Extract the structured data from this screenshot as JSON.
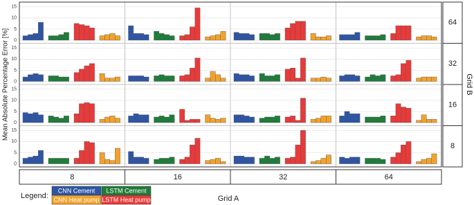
{
  "chart_data": {
    "type": "bar",
    "y_label": "Mean Absolute Percentage Error [%]",
    "x_facet_label": "Grid A",
    "y_facet_label": "Grid B",
    "legend_title": "Legend:",
    "x_facets": [
      "8",
      "16",
      "32",
      "64"
    ],
    "y_facets": [
      "64",
      "32",
      "16",
      "8"
    ],
    "ylim": [
      0,
      16.5
    ],
    "yticks": [
      0,
      5,
      10,
      15
    ],
    "grid": true,
    "series": [
      {
        "name": "CNN Cement",
        "color": "#2e55a5",
        "values": [
          [
            [
              2,
              2.5,
              3,
              8
            ],
            [
              6.5,
              3,
              3,
              2.5
            ],
            [
              3.5,
              3,
              3,
              2.5
            ],
            [
              2.5,
              2.5,
              2.5,
              3.5
            ]
          ],
          [
            [
              2,
              3,
              3.5,
              3
            ],
            [
              2.5,
              2.5,
              2.5,
              2
            ],
            [
              3.5,
              3,
              3,
              2.5
            ],
            [
              2.5,
              3,
              3,
              2.5
            ]
          ],
          [
            [
              4.5,
              4,
              4.5,
              3.5
            ],
            [
              3,
              4,
              3.5,
              3.5
            ],
            [
              3.5,
              3.5,
              3,
              2.5
            ],
            [
              3,
              5,
              4,
              4
            ]
          ],
          [
            [
              2.5,
              3,
              3.5,
              6
            ],
            [
              5.5,
              3,
              3,
              2.5
            ],
            [
              3.5,
              3.5,
              3,
              3
            ],
            [
              3,
              2.5,
              3,
              3
            ]
          ]
        ]
      },
      {
        "name": "LSTM Cement",
        "color": "#1e7d3a",
        "values": [
          [
            [
              2,
              2,
              2.5,
              3.5
            ],
            [
              4,
              3,
              2.5,
              2
            ],
            [
              3,
              3,
              2.5,
              3
            ],
            [
              2,
              2,
              2,
              2.5
            ]
          ],
          [
            [
              2.5,
              2.5,
              2,
              2
            ],
            [
              2.5,
              3,
              2.5,
              2.5
            ],
            [
              3.5,
              2.5,
              2.5,
              3
            ],
            [
              2,
              3,
              2.5,
              3
            ]
          ],
          [
            [
              3,
              2.5,
              2,
              3
            ],
            [
              2.5,
              3,
              2.5,
              3.5
            ],
            [
              2,
              2.5,
              2.5,
              3
            ],
            [
              2.5,
              2.5,
              2.5,
              3
            ]
          ],
          [
            [
              2.5,
              2.5,
              2.5,
              2.5
            ],
            [
              2,
              2.5,
              2.5,
              3
            ],
            [
              2.5,
              3.5,
              2.5,
              3
            ],
            [
              2.5,
              2.5,
              2.5,
              2
            ]
          ]
        ]
      },
      {
        "name": "CNN Heat pump",
        "color": "#f2a22c",
        "values": [
          [
            [
              2,
              2.5,
              3,
              2
            ],
            [
              1.5,
              2,
              2.5,
              4
            ],
            [
              3,
              1.5,
              1.5,
              2
            ],
            [
              1.5,
              2,
              2,
              1.5
            ]
          ],
          [
            [
              3.5,
              1.5,
              1.5,
              2
            ],
            [
              1.5,
              4.5,
              3,
              1.5
            ],
            [
              1.5,
              1.5,
              2,
              1.5
            ],
            [
              1.5,
              2,
              2,
              2
            ]
          ],
          [
            [
              1.5,
              2.5,
              3,
              2
            ],
            [
              3.5,
              2,
              1.5,
              2
            ],
            [
              1.5,
              2,
              3,
              3
            ],
            [
              1,
              3.5,
              1.5,
              1.5
            ]
          ],
          [
            [
              5,
              2,
              1.5,
              7
            ],
            [
              1.5,
              2,
              2.5,
              1
            ],
            [
              1,
              1.5,
              2.5,
              4
            ],
            [
              1,
              2,
              2.5,
              4.5
            ]
          ]
        ]
      },
      {
        "name": "LSTM Heat pump",
        "color": "#e83a3a",
        "values": [
          [
            [
              7.5,
              7,
              6.5,
              5.5
            ],
            [
              2,
              2.5,
              6,
              14.5
            ],
            [
              5.5,
              7.5,
              8.5,
              8.5
            ],
            [
              3,
              6.5,
              6.5,
              6.5
            ]
          ],
          [
            [
              4,
              5.5,
              7,
              8
            ],
            [
              2.5,
              3,
              6,
              10.5
            ],
            [
              5.5,
              6,
              1.5,
              10.5
            ],
            [
              2.5,
              3,
              8,
              9.5
            ]
          ],
          [
            [
              4,
              8.5,
              9,
              8.5
            ],
            [
              6,
              1,
              1.5,
              1.5
            ],
            [
              2.5,
              3,
              1,
              11
            ],
            [
              3,
              8.5,
              7,
              6.5
            ]
          ],
          [
            [
              2.5,
              6,
              10,
              9.5
            ],
            [
              2,
              3,
              8.5,
              11.5
            ],
            [
              2.5,
              3,
              8.5,
              15
            ],
            [
              3,
              5,
              8.5,
              10
            ]
          ]
        ]
      }
    ]
  }
}
